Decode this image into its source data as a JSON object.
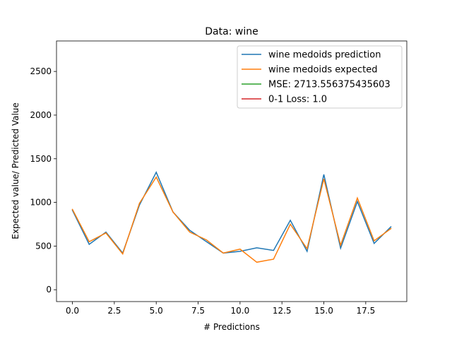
{
  "chart_data": {
    "type": "line",
    "title": "Data: wine",
    "xlabel": "# Predictions",
    "ylabel": "Expected value/ Predicted Value",
    "x": [
      0,
      1,
      2,
      3,
      4,
      5,
      6,
      7,
      8,
      9,
      10,
      11,
      12,
      13,
      14,
      15,
      16,
      17,
      18,
      19
    ],
    "series": [
      {
        "name": "wine medoids prediction",
        "color": "#1f77b4",
        "x": [
          0,
          1,
          2,
          3,
          4,
          5,
          6,
          7,
          8,
          9,
          10,
          11,
          12,
          13,
          14,
          15,
          16,
          17,
          18,
          19
        ],
        "values": [
          910,
          520,
          660,
          420,
          970,
          1345,
          890,
          680,
          550,
          420,
          440,
          480,
          450,
          795,
          440,
          1320,
          475,
          1010,
          530,
          720
        ]
      },
      {
        "name": "wine medoids expected",
        "color": "#ff7f0e",
        "x": [
          0,
          1,
          2,
          3,
          4,
          5,
          6,
          7,
          8,
          9,
          10,
          11,
          12,
          13,
          14,
          15,
          16,
          17,
          18,
          19
        ],
        "values": [
          920,
          550,
          650,
          410,
          990,
          1290,
          890,
          660,
          570,
          420,
          465,
          315,
          350,
          750,
          470,
          1270,
          510,
          1050,
          560,
          700
        ]
      },
      {
        "name": "MSE: 2713.556375435603",
        "color": "#2ca02c",
        "x": [
          0
        ],
        "values": [
          2713.556375435603
        ]
      },
      {
        "name": "0-1 Loss: 1.0",
        "color": "#d62728",
        "x": [
          0
        ],
        "values": [
          1.0
        ]
      }
    ],
    "xlim": [
      -0.95,
      19.95
    ],
    "xticks": [
      {
        "value": 0,
        "label": "0.0"
      },
      {
        "value": 2.5,
        "label": "2.5"
      },
      {
        "value": 5,
        "label": "5.0"
      },
      {
        "value": 7.5,
        "label": "7.5"
      },
      {
        "value": 10,
        "label": "10.0"
      },
      {
        "value": 12.5,
        "label": "12.5"
      },
      {
        "value": 15,
        "label": "15.0"
      },
      {
        "value": 17.5,
        "label": "17.5"
      }
    ],
    "ylim": [
      -135.7,
      2849
    ],
    "yticks": [
      0,
      500,
      1000,
      1500,
      2000,
      2500
    ],
    "legend": "upper right"
  }
}
